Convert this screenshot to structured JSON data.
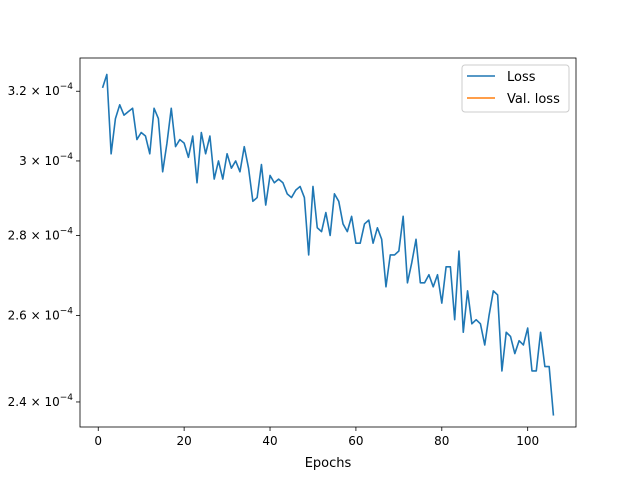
{
  "chart_data": {
    "type": "line",
    "title": "",
    "xlabel": "Epochs",
    "ylabel": "",
    "yscale": "log",
    "xlim": [
      -4.25,
      111.25
    ],
    "ylim": [
      0.0002345,
      0.00033
    ],
    "grid": false,
    "legend_position": "top-right",
    "x_ticks": [
      0,
      20,
      40,
      60,
      80,
      100
    ],
    "y_ticks": [
      0.00024,
      0.00026,
      0.00028,
      0.0003,
      0.00032
    ],
    "y_tick_labels": [
      {
        "mant": "2.4",
        "exp": "−4"
      },
      {
        "mant": "2.6",
        "exp": "−4"
      },
      {
        "mant": "2.8",
        "exp": "−4"
      },
      {
        "mant": "3",
        "exp": "−4"
      },
      {
        "mant": "3.2",
        "exp": "−4"
      }
    ],
    "series": [
      {
        "name": "Loss",
        "color": "#1f77b4",
        "x": [
          1,
          2,
          3,
          4,
          5,
          6,
          7,
          8,
          9,
          10,
          11,
          12,
          13,
          14,
          15,
          16,
          17,
          18,
          19,
          20,
          21,
          22,
          23,
          24,
          25,
          26,
          27,
          28,
          29,
          30,
          31,
          32,
          33,
          34,
          35,
          36,
          37,
          38,
          39,
          40,
          41,
          42,
          43,
          44,
          45,
          46,
          47,
          48,
          49,
          50,
          51,
          52,
          53,
          54,
          55,
          56,
          57,
          58,
          59,
          60,
          61,
          62,
          63,
          64,
          65,
          66,
          67,
          68,
          69,
          70,
          71,
          72,
          73,
          74,
          75,
          76,
          77,
          78,
          79,
          80,
          81,
          82,
          83,
          84,
          85,
          86,
          87,
          88,
          89,
          90,
          91,
          92,
          93,
          94,
          95,
          96,
          97,
          98,
          99,
          100,
          101,
          102,
          103,
          104,
          105,
          106
        ],
        "values": [
          0.000321,
          0.000325,
          0.000302,
          0.000312,
          0.000316,
          0.000313,
          0.000314,
          0.000315,
          0.000306,
          0.000308,
          0.000307,
          0.000302,
          0.000315,
          0.000312,
          0.000297,
          0.000305,
          0.000315,
          0.000304,
          0.000306,
          0.000305,
          0.000301,
          0.000307,
          0.000294,
          0.000308,
          0.000302,
          0.000307,
          0.000295,
          0.0003,
          0.000295,
          0.000302,
          0.000298,
          0.0003,
          0.000297,
          0.000304,
          0.000298,
          0.000289,
          0.00029,
          0.000299,
          0.000288,
          0.000296,
          0.000294,
          0.000295,
          0.000294,
          0.000291,
          0.00029,
          0.000292,
          0.000293,
          0.00029,
          0.000275,
          0.000293,
          0.000282,
          0.000281,
          0.000286,
          0.00028,
          0.000291,
          0.000289,
          0.000283,
          0.000281,
          0.000285,
          0.000278,
          0.000278,
          0.000283,
          0.000284,
          0.000278,
          0.000282,
          0.000279,
          0.000267,
          0.000275,
          0.000275,
          0.000276,
          0.000285,
          0.000268,
          0.000273,
          0.000279,
          0.000268,
          0.000268,
          0.00027,
          0.000267,
          0.00027,
          0.000263,
          0.000272,
          0.000272,
          0.000259,
          0.000276,
          0.000256,
          0.000266,
          0.000258,
          0.000259,
          0.000258,
          0.000253,
          0.00026,
          0.000266,
          0.000265,
          0.000247,
          0.000256,
          0.000255,
          0.000251,
          0.000254,
          0.000253,
          0.000257,
          0.000247,
          0.000247,
          0.000256,
          0.000248,
          0.000248,
          0.000237
        ]
      },
      {
        "name": "Val. loss",
        "color": "#ff7f0e",
        "x": [],
        "values": []
      }
    ]
  }
}
